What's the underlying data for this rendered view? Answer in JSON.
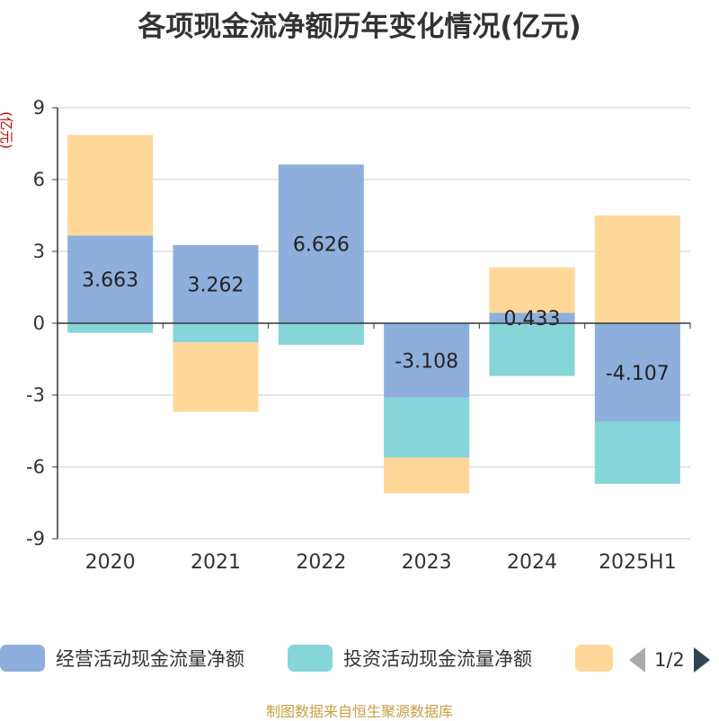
{
  "chart_data": {
    "type": "bar",
    "stacked": true,
    "title": "各项现金流净额历年变化情况(亿元)",
    "ylabel": "(亿元)",
    "ylim": [
      -9,
      9
    ],
    "yticks": [
      9,
      6,
      3,
      0,
      -3,
      -6,
      -9
    ],
    "categories": [
      "2020",
      "2021",
      "2022",
      "2023",
      "2024",
      "2025H1"
    ],
    "series": [
      {
        "name": "经营活动现金流量净额",
        "color": "#8eaedc",
        "values": [
          3.663,
          3.262,
          6.626,
          -3.108,
          0.433,
          -4.107
        ],
        "labels": [
          "3.663",
          "3.262",
          "6.626",
          "-3.108",
          "0.433",
          "-4.107"
        ]
      },
      {
        "name": "投资活动现金流量净额",
        "color": "#86d5d8",
        "values": [
          -0.4,
          -0.8,
          -0.9,
          -2.5,
          -2.2,
          -2.6
        ]
      },
      {
        "name": "",
        "color": "#ffd899",
        "values": [
          4.2,
          -2.9,
          0,
          -1.5,
          1.9,
          4.5
        ]
      }
    ],
    "legend": {
      "position": "bottom",
      "page": "1/2"
    },
    "grid": true
  },
  "source": "制图数据来自恒生聚源数据库"
}
